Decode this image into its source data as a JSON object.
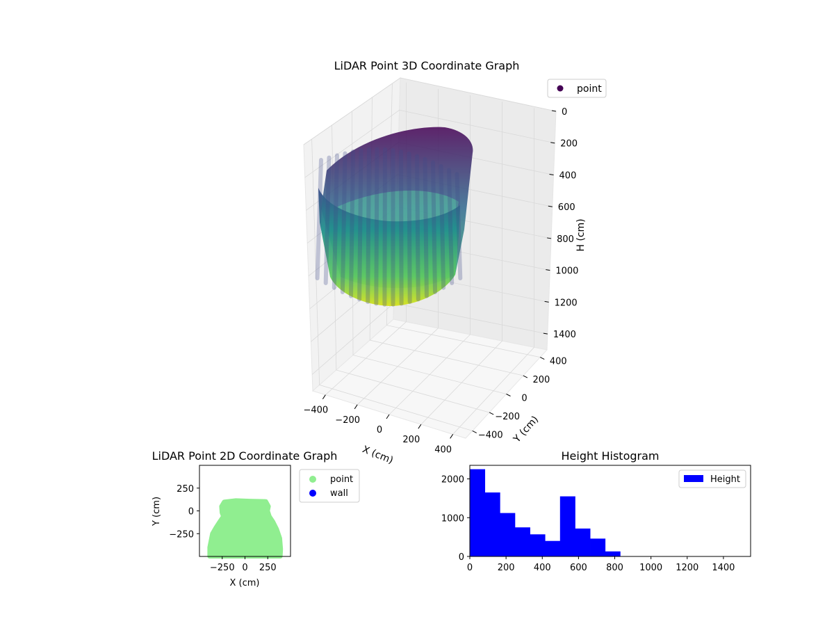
{
  "chart_data": [
    {
      "type": "scatter",
      "projection": "3d",
      "title": "LiDAR Point 3D Coordinate Graph",
      "xlabel": "X (cm)",
      "ylabel": "Y (cm)",
      "zlabel": "H (cm)",
      "x_ticks": [
        -400,
        -200,
        0,
        200,
        400
      ],
      "y_ticks": [
        -400,
        -200,
        0,
        200,
        400
      ],
      "z_ticks": [
        0,
        200,
        400,
        600,
        800,
        1000,
        1200,
        1400
      ],
      "x_tick_labels": [
        "−400",
        "−200",
        "0",
        "200",
        "400"
      ],
      "y_tick_labels": [
        "−400",
        "−200",
        "0",
        "200",
        "400"
      ],
      "z_tick_labels": [
        "0",
        "200",
        "400",
        "600",
        "800",
        "1000",
        "1200",
        "1400"
      ],
      "xlim": [
        -480,
        480
      ],
      "ylim": [
        -480,
        480
      ],
      "zlim": [
        0,
        1500
      ],
      "z_inverted": true,
      "colormap": "viridis",
      "legend": {
        "label": "point",
        "location": "upper-right",
        "color": "#440154"
      },
      "grid": true,
      "series": [
        {
          "name": "point",
          "description_shape": "vertical scan lines forming a bowl-shaped cylinder wall, radius about 400 cm, heights 0 to about 830 cm"
        }
      ]
    },
    {
      "type": "scatter",
      "title": "LiDAR Point 2D Coordinate Graph",
      "xlabel": "X (cm)",
      "ylabel": "Y (cm)",
      "x_ticks": [
        -250,
        0,
        250
      ],
      "y_ticks": [
        -250,
        0,
        250
      ],
      "x_tick_labels": [
        "−250",
        "0",
        "250"
      ],
      "y_tick_labels": [
        "−250",
        "0",
        "250"
      ],
      "xlim": [
        -500,
        500
      ],
      "ylim": [
        -500,
        500
      ],
      "legend": {
        "location": "outside-right",
        "entries": [
          "point",
          "wall"
        ]
      },
      "series": [
        {
          "name": "point",
          "color": "#90ee90",
          "outline": [
            [
              -390,
              -500
            ],
            [
              -390,
              -400
            ],
            [
              -360,
              -250
            ],
            [
              -320,
              -180
            ],
            [
              -280,
              -120
            ],
            [
              -240,
              -60
            ],
            [
              -255,
              -20
            ],
            [
              -260,
              50
            ],
            [
              -230,
              100
            ],
            [
              -100,
              115
            ],
            [
              50,
              110
            ],
            [
              230,
              105
            ],
            [
              260,
              50
            ],
            [
              250,
              0
            ],
            [
              270,
              -60
            ],
            [
              310,
              -120
            ],
            [
              350,
              -200
            ],
            [
              385,
              -300
            ],
            [
              395,
              -420
            ],
            [
              390,
              -500
            ]
          ]
        },
        {
          "name": "wall",
          "color": "#0000ff",
          "points": []
        }
      ]
    },
    {
      "type": "bar",
      "title": "Height Histogram",
      "xlabel": "",
      "ylabel": "",
      "bin_edges": [
        0,
        83,
        166,
        249,
        332,
        415,
        498,
        581,
        664,
        747,
        830
      ],
      "values": [
        2250,
        1650,
        1120,
        750,
        570,
        400,
        1550,
        720,
        460,
        130
      ],
      "xlim": [
        0,
        1550
      ],
      "ylim": [
        0,
        2350
      ],
      "x_ticks": [
        0,
        200,
        400,
        600,
        800,
        1000,
        1200,
        1400
      ],
      "y_ticks": [
        0,
        1000,
        2000
      ],
      "x_tick_labels": [
        "0",
        "200",
        "400",
        "600",
        "800",
        "1000",
        "1200",
        "1400"
      ],
      "y_tick_labels": [
        "0",
        "1000",
        "2000"
      ],
      "color": "#0000ff",
      "legend": {
        "label": "Height",
        "location": "upper-right"
      }
    }
  ]
}
